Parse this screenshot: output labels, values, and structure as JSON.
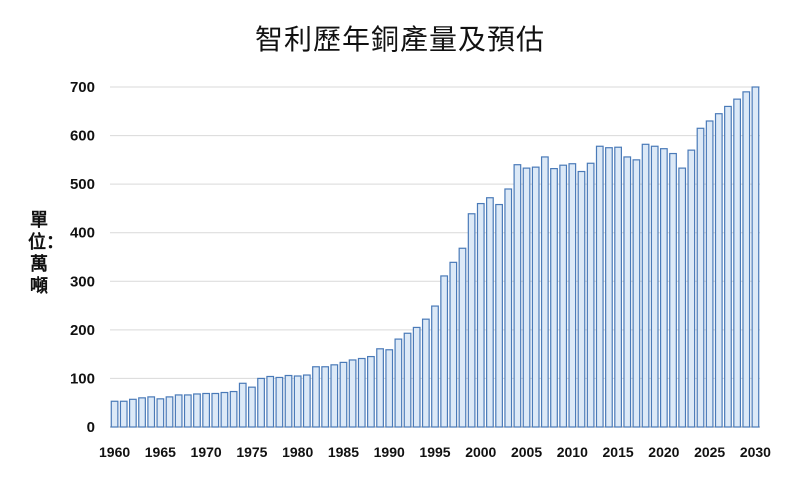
{
  "chart_data": {
    "type": "bar",
    "title": "智利歷年銅產量及預估",
    "ylabel": "單位：萬噸",
    "xlabel": "",
    "ylim": [
      0,
      700
    ],
    "yticks": [
      0,
      100,
      200,
      300,
      400,
      500,
      600,
      700
    ],
    "xtick_labels": [
      "1960",
      "1965",
      "1970",
      "1975",
      "1980",
      "1985",
      "1990",
      "1995",
      "2000",
      "2005",
      "2010",
      "2015",
      "2020",
      "2025",
      "2030"
    ],
    "grid": true,
    "bar_fill": "#dce9f7",
    "bar_stroke": "#4a7ab8",
    "x": [
      1960,
      1961,
      1962,
      1963,
      1964,
      1965,
      1966,
      1967,
      1968,
      1969,
      1970,
      1971,
      1972,
      1973,
      1974,
      1975,
      1976,
      1977,
      1978,
      1979,
      1980,
      1981,
      1982,
      1983,
      1984,
      1985,
      1986,
      1987,
      1988,
      1989,
      1990,
      1991,
      1992,
      1993,
      1994,
      1995,
      1996,
      1997,
      1998,
      1999,
      2000,
      2001,
      2002,
      2003,
      2004,
      2005,
      2006,
      2007,
      2008,
      2009,
      2010,
      2011,
      2012,
      2013,
      2014,
      2015,
      2016,
      2017,
      2018,
      2019,
      2020,
      2021,
      2022,
      2023,
      2024,
      2025,
      2026,
      2027,
      2028,
      2029,
      2030
    ],
    "values": [
      53,
      53,
      57,
      60,
      62,
      58,
      62,
      66,
      66,
      68,
      69,
      69,
      71,
      73,
      90,
      82,
      100,
      104,
      102,
      106,
      105,
      107,
      124,
      124,
      128,
      133,
      138,
      141,
      145,
      161,
      159,
      181,
      193,
      205,
      222,
      249,
      311,
      339,
      368,
      439,
      460,
      472,
      458,
      490,
      540,
      533,
      535,
      556,
      532,
      539,
      542,
      526,
      543,
      578,
      575,
      576,
      556,
      550,
      582,
      578,
      573,
      563,
      533,
      570,
      615,
      630,
      645,
      660,
      675,
      690,
      700
    ]
  }
}
